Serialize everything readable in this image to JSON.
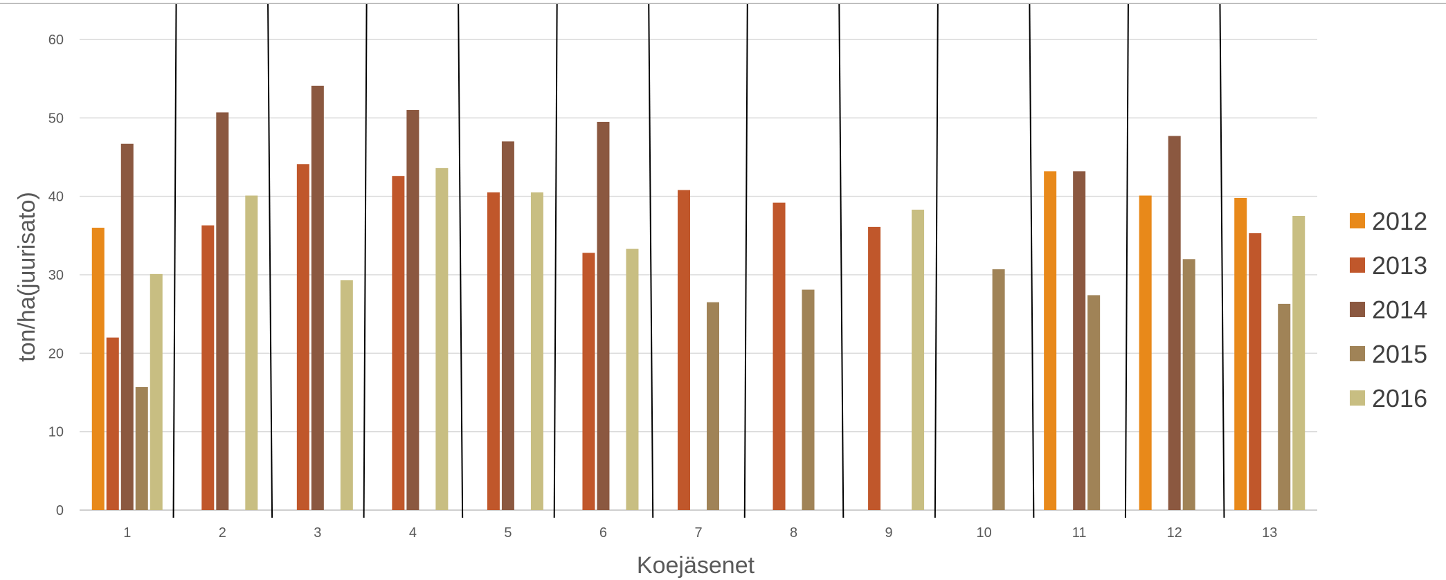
{
  "chart_data": {
    "type": "bar",
    "title": "",
    "xlabel": "Koejäsenet",
    "ylabel": "ton/ha(juurisato)",
    "ylim": [
      0,
      60
    ],
    "yticks": [
      "0",
      "10",
      "20",
      "30",
      "40",
      "50",
      "60"
    ],
    "grid": true,
    "legend_position": "right",
    "categories": [
      "1",
      "2",
      "3",
      "4",
      "5",
      "6",
      "7",
      "8",
      "9",
      "10",
      "11",
      "12",
      "13"
    ],
    "series": [
      {
        "name": "2012",
        "color": "#E8891A",
        "values": [
          36,
          null,
          null,
          null,
          null,
          null,
          null,
          null,
          null,
          null,
          43.2,
          40.1,
          39.8
        ]
      },
      {
        "name": "2013",
        "color": "#C0572B",
        "values": [
          22,
          36.3,
          44.1,
          42.6,
          40.5,
          32.8,
          40.8,
          39.2,
          36.1,
          null,
          null,
          null,
          35.3
        ]
      },
      {
        "name": "2014",
        "color": "#8B5840",
        "values": [
          46.7,
          50.7,
          54.1,
          51,
          47,
          49.5,
          null,
          null,
          null,
          null,
          43.2,
          47.7,
          null
        ]
      },
      {
        "name": "2015",
        "color": "#A08357",
        "values": [
          15.7,
          null,
          null,
          null,
          null,
          null,
          26.5,
          28.1,
          null,
          30.7,
          27.4,
          32,
          26.3
        ]
      },
      {
        "name": "2016",
        "color": "#C8BE82",
        "values": [
          30.1,
          40.1,
          29.3,
          43.6,
          40.5,
          33.3,
          null,
          null,
          38.3,
          null,
          null,
          null,
          37.5
        ]
      }
    ]
  }
}
